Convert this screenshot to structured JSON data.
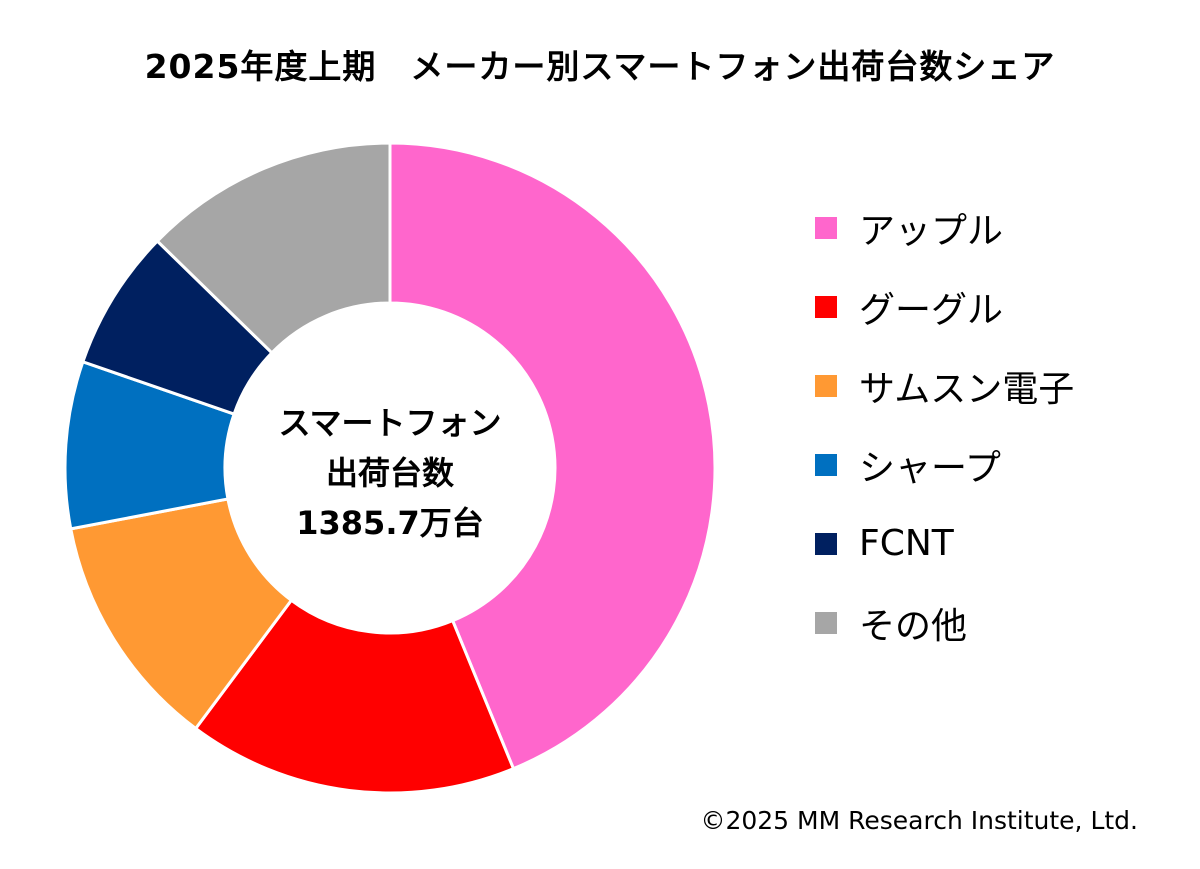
{
  "chart_data": {
    "type": "pie",
    "subtype": "donut",
    "title": "2025年度上期　メーカー別スマートフォン出荷台数シェア",
    "center_label": [
      "スマートフォン",
      "出荷台数",
      "1385.7万台"
    ],
    "categories": [
      "アップル",
      "グーグル",
      "サムスン電子",
      "シャープ",
      "FCNT",
      "その他"
    ],
    "values": [
      43.8,
      16.4,
      11.8,
      8.3,
      7.0,
      12.7
    ],
    "unit": "%",
    "colors": [
      "#FF66CC",
      "#FF0000",
      "#FF9933",
      "#0070C0",
      "#002060",
      "#A6A6A6"
    ],
    "legend_position": "right",
    "start_angle": "12 o'clock, clockwise"
  },
  "footer": {
    "copyright": "©2025 MM Research Institute, Ltd."
  }
}
